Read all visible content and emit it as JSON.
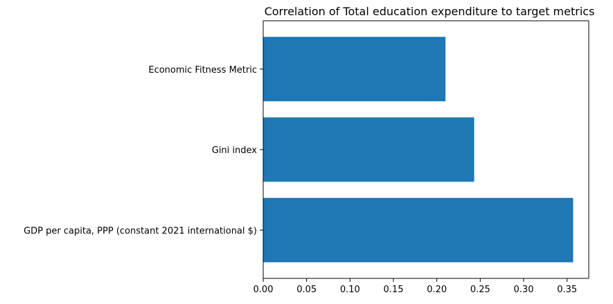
{
  "chart_data": {
    "type": "bar",
    "orientation": "horizontal",
    "title": "Correlation of Total education expenditure to target metrics",
    "xlabel": "",
    "ylabel": "",
    "categories": [
      "GDP per capita, PPP (constant 2021 international $)",
      "Gini index",
      "Economic Fitness Metric"
    ],
    "values": [
      0.357,
      0.243,
      0.21
    ],
    "xlim": [
      0,
      0.375
    ],
    "xticks": [
      "0.00",
      "0.05",
      "0.10",
      "0.15",
      "0.20",
      "0.25",
      "0.30",
      "0.35"
    ],
    "grid": false,
    "legend": "none",
    "bar_color": "#1f77b4"
  }
}
